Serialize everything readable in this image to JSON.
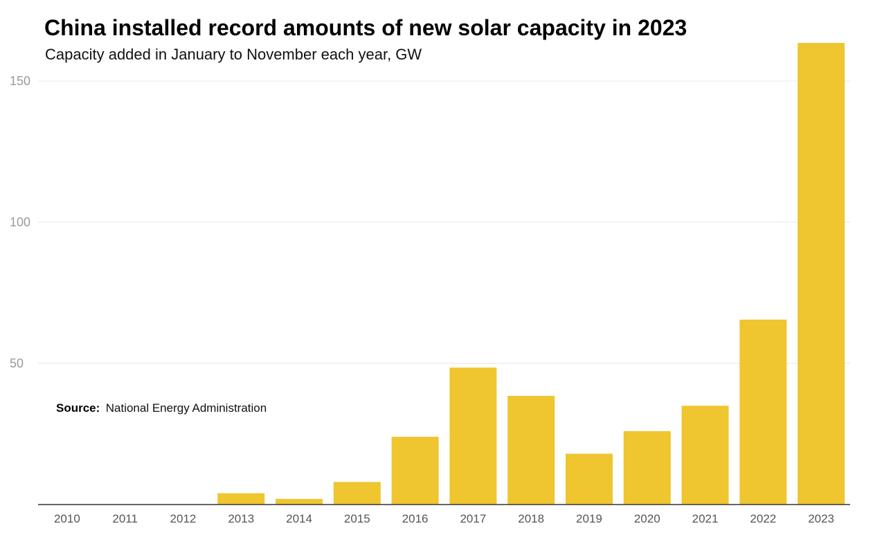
{
  "chart_data": {
    "type": "bar",
    "title": "China installed record amounts of new solar capacity in 2023",
    "subtitle": "Capacity added in January to November each year, GW",
    "categories": [
      "2010",
      "2011",
      "2012",
      "2013",
      "2014",
      "2015",
      "2016",
      "2017",
      "2018",
      "2019",
      "2020",
      "2021",
      "2022",
      "2023"
    ],
    "values": [
      0,
      0,
      0,
      4,
      2,
      8,
      24,
      48.5,
      38.5,
      18,
      26,
      35,
      65.5,
      163.5
    ],
    "ylim": [
      0,
      163.5
    ],
    "yticks": [
      50,
      100,
      150
    ],
    "grid": true,
    "bar_color": "#efc530",
    "source_label": "Source:",
    "source": "National Energy Administration"
  }
}
